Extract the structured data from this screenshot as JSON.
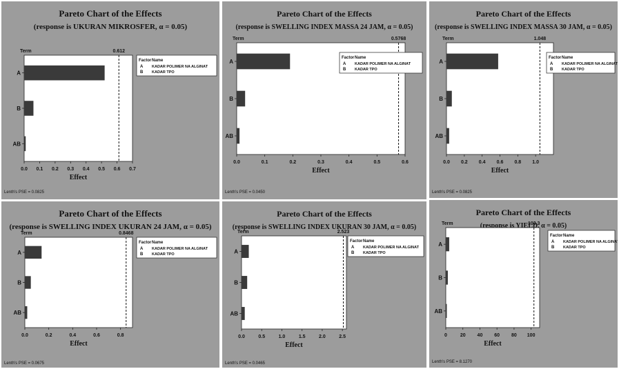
{
  "colors": {
    "panel_bg": "#9c9c9c",
    "plot_bg": "#ffffff",
    "bar": "#3a3a3a",
    "text": "#111111"
  },
  "chart_data": [
    {
      "type": "bar",
      "orientation": "horizontal",
      "title": "Pareto Chart of the Effects",
      "subtitle": "(response is UKURAN MIKROSFER, α = 0.05)",
      "y_axis_title": "Term",
      "xlabel": "Effect",
      "categories": [
        "A",
        "B",
        "AB"
      ],
      "values": [
        0.52,
        0.06,
        0.01
      ],
      "xlim": [
        0.0,
        0.7
      ],
      "xticks": [
        "0.0",
        "0.1",
        "0.2",
        "0.3",
        "0.4",
        "0.5",
        "0.6",
        "0.7"
      ],
      "reference_value": 0.612,
      "reference_label": "0.612",
      "legend": {
        "header": [
          "Factor",
          "Name"
        ],
        "rows": [
          [
            "A",
            "KADAR POLIMER NA ALGINAT"
          ],
          [
            "B",
            "KADAR TPO"
          ]
        ]
      },
      "footnote": "Lenth's PSE = 0.0825"
    },
    {
      "type": "bar",
      "orientation": "horizontal",
      "title": "Pareto Chart of the Effects",
      "subtitle": "(response is SWELLING INDEX MASSA 24 JAM, α = 0.05)",
      "y_axis_title": "Term",
      "xlabel": "Effect",
      "categories": [
        "A",
        "B",
        "AB"
      ],
      "values": [
        0.19,
        0.03,
        0.01
      ],
      "xlim": [
        0.0,
        0.6
      ],
      "xticks": [
        "0.0",
        "0.1",
        "0.2",
        "0.3",
        "0.4",
        "0.5",
        "0.6"
      ],
      "reference_value": 0.5768,
      "reference_label": "0.5768",
      "legend": {
        "header": [
          "Factor",
          "Name"
        ],
        "rows": [
          [
            "A",
            "KADAR POLIMER NA ALGINAT"
          ],
          [
            "B",
            "KADAR TPO"
          ]
        ]
      },
      "footnote": "Lenth's PSE = 0.0450"
    },
    {
      "type": "bar",
      "orientation": "horizontal",
      "title": "Pareto Chart of the Effects",
      "subtitle": "(response is SWELLING INDEX MASSA 30 JAM, α = 0.05)",
      "y_axis_title": "Term",
      "xlabel": "Effect",
      "categories": [
        "A",
        "B",
        "AB"
      ],
      "values": [
        0.58,
        0.06,
        0.03
      ],
      "xlim": [
        0.0,
        1.2
      ],
      "xticks": [
        "0.0",
        "0.2",
        "0.4",
        "0.6",
        "0.8",
        "1.0"
      ],
      "reference_value": 1.048,
      "reference_label": "1.048",
      "legend": {
        "header": [
          "Factor",
          "Name"
        ],
        "rows": [
          [
            "A",
            "KADAR POLIMER NA ALGINAT"
          ],
          [
            "B",
            "KADAR TPO"
          ]
        ]
      },
      "footnote": "Lenth's PSE = 0.0825"
    },
    {
      "type": "bar",
      "orientation": "horizontal",
      "title": "Pareto Chart of the Effects",
      "subtitle": "(response is SWELLING INDEX UKURAN 24 JAM, α = 0.05)",
      "y_axis_title": "Term",
      "xlabel": "Effect",
      "categories": [
        "A",
        "B",
        "AB"
      ],
      "values": [
        0.14,
        0.05,
        0.02
      ],
      "xlim": [
        0.0,
        0.9
      ],
      "xticks": [
        "0.0",
        "0.2",
        "0.4",
        "0.6",
        "0.8"
      ],
      "reference_value": 0.8468,
      "reference_label": "0.8468",
      "legend": {
        "header": [
          "Factor",
          "Name"
        ],
        "rows": [
          [
            "A",
            "KADAR POLIMER NA ALGINAT"
          ],
          [
            "B",
            "KADAR TPO"
          ]
        ]
      },
      "footnote": "Lenth's PSE = 0.0675"
    },
    {
      "type": "bar",
      "orientation": "horizontal",
      "title": "Pareto Chart of the Effects",
      "subtitle": "(response is SWELLING INDEX UKURAN 30 JAM, α = 0.05)",
      "y_axis_title": "Term",
      "xlabel": "Effect",
      "categories": [
        "A",
        "B",
        "AB"
      ],
      "values": [
        0.18,
        0.14,
        0.08
      ],
      "xlim": [
        0.0,
        2.6
      ],
      "xticks": [
        "0.0",
        "0.5",
        "1.0",
        "1.5",
        "2.0",
        "2.5"
      ],
      "reference_value": 2.523,
      "reference_label": "2.523",
      "legend": {
        "header": [
          "Factor",
          "Name"
        ],
        "rows": [
          [
            "A",
            "KADAR POLIMER NA ALGINAT"
          ],
          [
            "B",
            "KADAR TPO"
          ]
        ]
      },
      "footnote": "Lenth's PSE = 0.0465"
    },
    {
      "type": "bar",
      "orientation": "horizontal",
      "title": "Pareto Chart of the Effects",
      "subtitle": "(response is YIELD, α = 0.05)",
      "y_axis_title": "Term",
      "xlabel": "Effect",
      "categories": [
        "A",
        "B",
        "AB"
      ],
      "values": [
        4.0,
        2.4,
        1.0
      ],
      "xlim": [
        0,
        110
      ],
      "xticks": [
        "0",
        "20",
        "40",
        "60",
        "80",
        "100"
      ],
      "reference_value": 103.3,
      "reference_label": "103.3",
      "legend": {
        "header": [
          "Factor",
          "Name"
        ],
        "rows": [
          [
            "A",
            "KADAR POLIMER NA ALGINAT"
          ],
          [
            "B",
            "KADAR TPO"
          ]
        ]
      },
      "footnote": "Lenth's PSE = 8.1270"
    }
  ]
}
